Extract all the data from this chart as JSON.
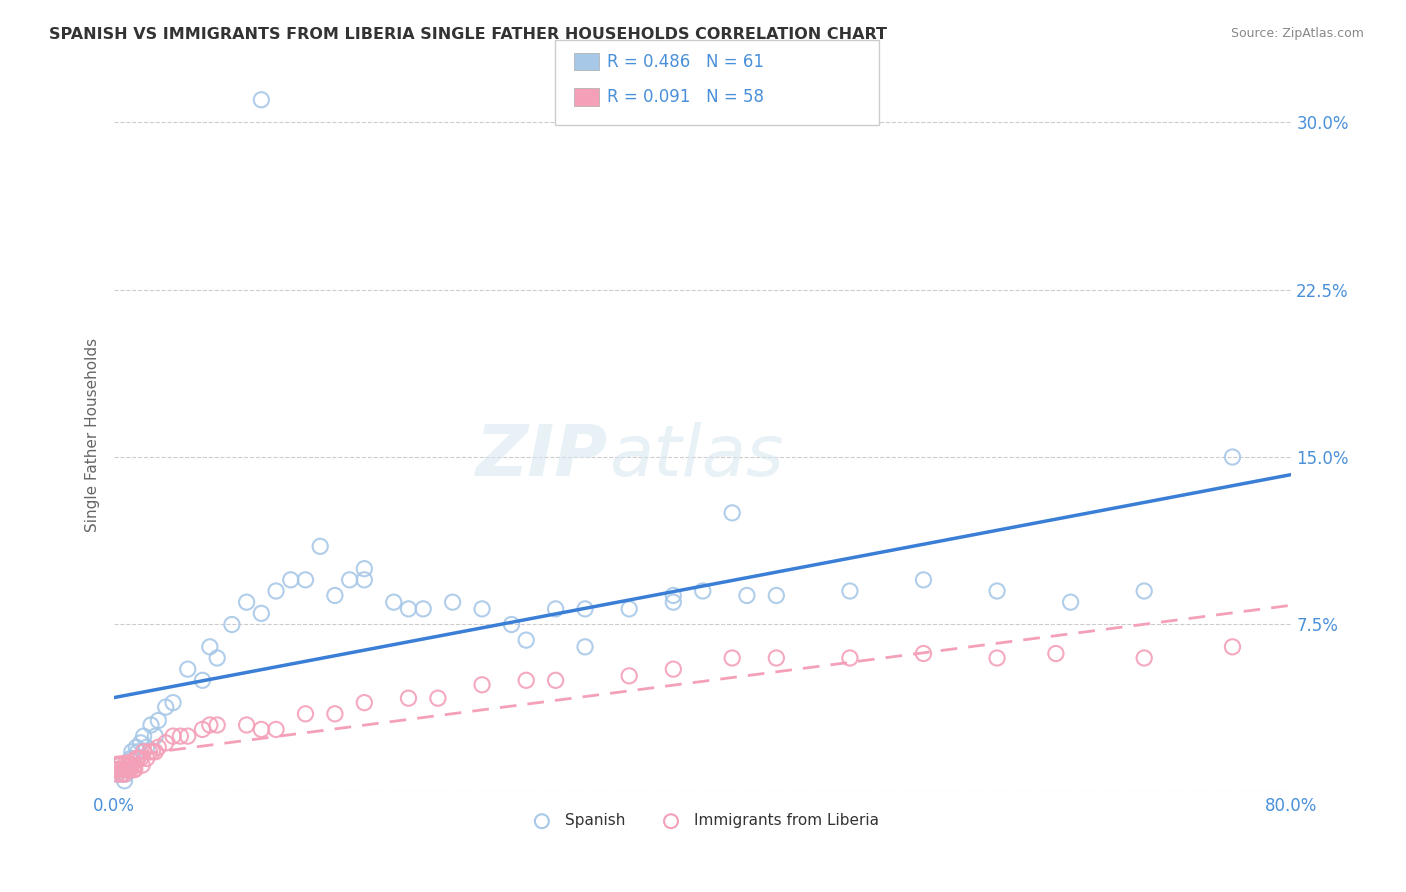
{
  "title": "SPANISH VS IMMIGRANTS FROM LIBERIA SINGLE FATHER HOUSEHOLDS CORRELATION CHART",
  "source": "Source: ZipAtlas.com",
  "ylabel": "Single Father Households",
  "legend_r": [
    0.486,
    0.091
  ],
  "legend_n": [
    61,
    58
  ],
  "xlim": [
    0.0,
    0.8
  ],
  "ylim": [
    0.0,
    0.32
  ],
  "xticks": [
    0.0,
    0.2,
    0.4,
    0.6,
    0.8
  ],
  "yticks": [
    0.0,
    0.075,
    0.15,
    0.225,
    0.3
  ],
  "spanish_color": "#a8c8e8",
  "liberia_color": "#f4a0b8",
  "spanish_line_color": "#3a7fd5",
  "liberia_line_color": "#f4a0b8",
  "legend_labels": [
    "Spanish",
    "Immigrants from Liberia"
  ],
  "background_color": "#ffffff",
  "grid_color": "#cccccc",
  "spanish_scatter_x": [
    0.002,
    0.003,
    0.004,
    0.005,
    0.006,
    0.007,
    0.008,
    0.009,
    0.01,
    0.011,
    0.012,
    0.013,
    0.015,
    0.016,
    0.018,
    0.02,
    0.022,
    0.025,
    0.028,
    0.03,
    0.035,
    0.04,
    0.05,
    0.06,
    0.065,
    0.07,
    0.08,
    0.09,
    0.1,
    0.11,
    0.12,
    0.13,
    0.15,
    0.16,
    0.17,
    0.19,
    0.2,
    0.21,
    0.23,
    0.25,
    0.27,
    0.3,
    0.32,
    0.35,
    0.38,
    0.4,
    0.43,
    0.45,
    0.5,
    0.55,
    0.6,
    0.65,
    0.7,
    0.32,
    0.28,
    0.38,
    0.17,
    0.14,
    0.42,
    0.76,
    0.1
  ],
  "spanish_scatter_y": [
    0.008,
    0.01,
    0.012,
    0.008,
    0.01,
    0.005,
    0.008,
    0.01,
    0.012,
    0.015,
    0.018,
    0.015,
    0.02,
    0.018,
    0.022,
    0.025,
    0.02,
    0.03,
    0.025,
    0.032,
    0.038,
    0.04,
    0.055,
    0.05,
    0.065,
    0.06,
    0.075,
    0.085,
    0.08,
    0.09,
    0.095,
    0.095,
    0.088,
    0.095,
    0.095,
    0.085,
    0.082,
    0.082,
    0.085,
    0.082,
    0.075,
    0.082,
    0.082,
    0.082,
    0.085,
    0.09,
    0.088,
    0.088,
    0.09,
    0.095,
    0.09,
    0.085,
    0.09,
    0.065,
    0.068,
    0.088,
    0.1,
    0.11,
    0.125,
    0.15,
    0.31
  ],
  "liberia_scatter_x": [
    0.001,
    0.002,
    0.003,
    0.004,
    0.004,
    0.005,
    0.006,
    0.007,
    0.007,
    0.008,
    0.009,
    0.009,
    0.01,
    0.011,
    0.011,
    0.012,
    0.013,
    0.014,
    0.014,
    0.015,
    0.016,
    0.016,
    0.018,
    0.019,
    0.02,
    0.022,
    0.024,
    0.026,
    0.028,
    0.03,
    0.035,
    0.04,
    0.045,
    0.05,
    0.06,
    0.065,
    0.07,
    0.09,
    0.1,
    0.11,
    0.13,
    0.15,
    0.17,
    0.2,
    0.22,
    0.25,
    0.28,
    0.3,
    0.35,
    0.38,
    0.42,
    0.45,
    0.5,
    0.55,
    0.6,
    0.64,
    0.7,
    0.76
  ],
  "liberia_scatter_y": [
    0.01,
    0.008,
    0.012,
    0.01,
    0.012,
    0.008,
    0.01,
    0.008,
    0.012,
    0.01,
    0.01,
    0.012,
    0.01,
    0.012,
    0.01,
    0.012,
    0.01,
    0.012,
    0.01,
    0.015,
    0.015,
    0.015,
    0.015,
    0.012,
    0.018,
    0.015,
    0.018,
    0.018,
    0.018,
    0.02,
    0.022,
    0.025,
    0.025,
    0.025,
    0.028,
    0.03,
    0.03,
    0.03,
    0.028,
    0.028,
    0.035,
    0.035,
    0.04,
    0.042,
    0.042,
    0.048,
    0.05,
    0.05,
    0.052,
    0.055,
    0.06,
    0.06,
    0.06,
    0.062,
    0.06,
    0.062,
    0.06,
    0.065
  ]
}
